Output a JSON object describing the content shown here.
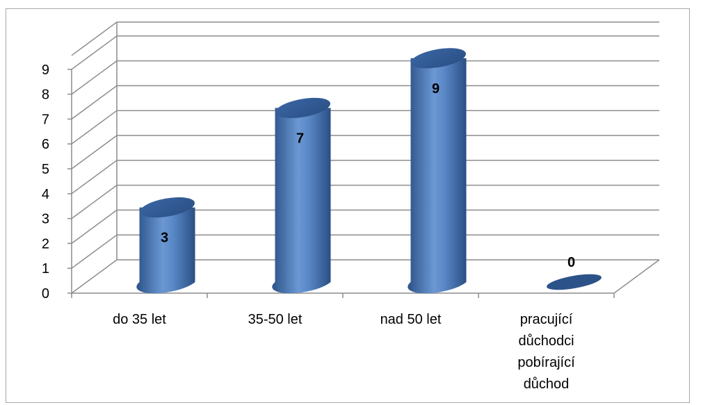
{
  "chart_data": {
    "type": "bar",
    "style": "3d-cylinder",
    "title": "",
    "xlabel": "",
    "ylabel": "",
    "categories": [
      [
        "do 35 let"
      ],
      [
        "35-50 let"
      ],
      [
        "nad 50 let"
      ],
      [
        "pracující",
        "důchodci",
        "pobírající",
        "důchod"
      ]
    ],
    "values": [
      3,
      7,
      9,
      0
    ],
    "data_labels": [
      "3",
      "7",
      "9",
      "0"
    ],
    "ylim": [
      0,
      9
    ],
    "yticks": [
      "0",
      "1",
      "2",
      "3",
      "4",
      "5",
      "6",
      "7",
      "8",
      "9"
    ],
    "grid": true,
    "legend": "none",
    "colors": {
      "bar": "#4f81bd",
      "bar_dark": "#2c5389",
      "bar_light": "#7ea6d9",
      "grid": "#8c8c8c",
      "frame": "#a6a6a6"
    }
  }
}
